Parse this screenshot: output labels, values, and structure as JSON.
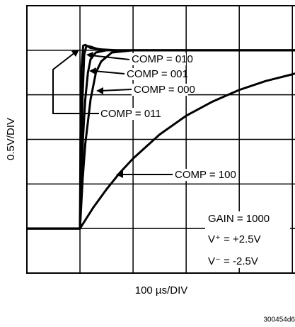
{
  "chart_data": {
    "type": "line",
    "xlabel": "100 µs/DIV",
    "ylabel": "0.5V/DIV",
    "figure_id": "300454d6",
    "xlim": [
      0,
      5.05
    ],
    "ylim": [
      -1,
      5
    ],
    "xticks": [
      1,
      2,
      3,
      4,
      5
    ],
    "yticks": [
      0,
      1,
      2,
      3,
      4
    ],
    "grid": true,
    "color": "#000000",
    "annotations": [
      "GAIN = 1000",
      "V⁺ = +2.5V",
      "V⁻ = -2.5V"
    ],
    "series": [
      {
        "name": "COMP = 010",
        "x": [
          0,
          1,
          1.02,
          1.05,
          1.08,
          1.12,
          1.2,
          1.35,
          1.6,
          5.05
        ],
        "values": [
          0,
          0,
          1.5,
          3,
          3.9,
          4.1,
          4.08,
          4.02,
          4,
          4
        ]
      },
      {
        "name": "COMP = 001",
        "x": [
          0,
          1,
          1.03,
          1.06,
          1.1,
          1.15,
          1.2,
          1.3,
          1.5,
          5.05
        ],
        "values": [
          0,
          0,
          1.2,
          2.1,
          2.9,
          3.5,
          3.8,
          3.95,
          4,
          4
        ]
      },
      {
        "name": "COMP = 000",
        "x": [
          0,
          1,
          1.05,
          1.1,
          1.2,
          1.3,
          1.4,
          1.6,
          2,
          5.05
        ],
        "values": [
          0,
          0,
          1.1,
          1.9,
          2.9,
          3.5,
          3.75,
          3.95,
          4,
          4
        ]
      },
      {
        "name": "COMP = 011",
        "x": [
          0,
          1,
          1.01,
          1.03,
          1.06,
          1.1,
          1.2,
          1.4,
          1.7,
          5.05
        ],
        "values": [
          0,
          0,
          2,
          3.6,
          4.1,
          4.12,
          4.05,
          4.02,
          4,
          4
        ]
      },
      {
        "name": "COMP = 100",
        "x": [
          0,
          1,
          1.25,
          1.5,
          1.75,
          2,
          2.5,
          3,
          3.5,
          4,
          4.5,
          5,
          5.05
        ],
        "values": [
          0,
          0,
          0.47,
          0.88,
          1.25,
          1.57,
          2.11,
          2.53,
          2.85,
          3.11,
          3.31,
          3.46,
          3.48
        ]
      }
    ]
  }
}
